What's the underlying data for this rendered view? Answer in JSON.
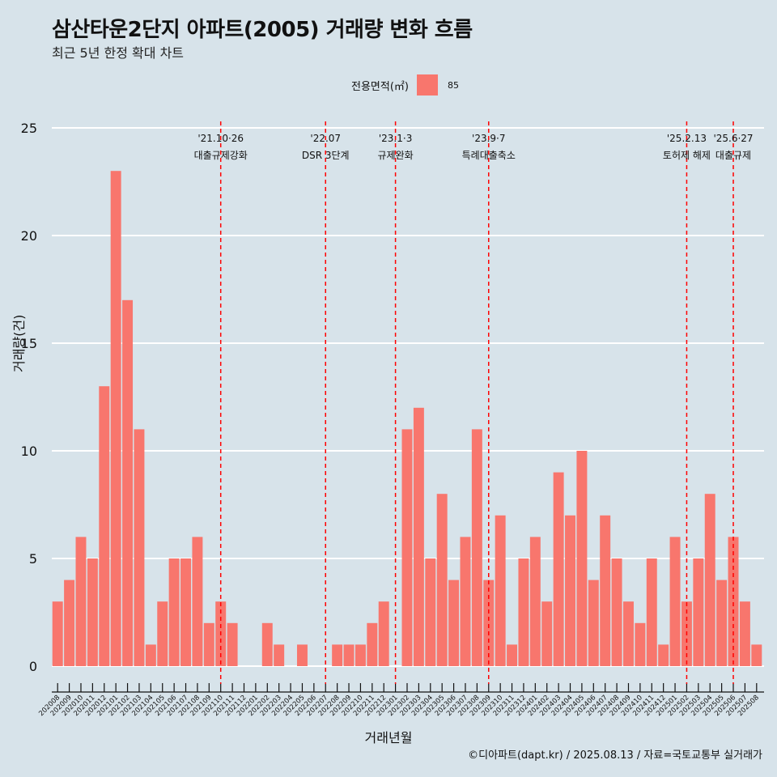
{
  "chart_data": {
    "type": "bar",
    "title": "삼산타운2단지 아파트(2005) 거래량 변화 흐름",
    "subtitle": "최근 5년 한정 확대 차트",
    "xlabel": "거래년월",
    "ylabel": "거래량(건)",
    "caption": "©디아파트(dapt.kr) / 2025.08.13 / 자료=국토교통부 실거래가",
    "legend": {
      "title": "전용면적(㎡)",
      "position": "top",
      "entries": [
        {
          "label": "85",
          "color": "#f8766d"
        }
      ]
    },
    "ylim": [
      0,
      25
    ],
    "yticks": [
      0,
      5,
      10,
      15,
      20,
      25
    ],
    "grid": true,
    "bar_color": "#f8766d",
    "categories": [
      "202008",
      "202009",
      "202010",
      "202011",
      "202012",
      "202101",
      "202102",
      "202103",
      "202104",
      "202105",
      "202106",
      "202107",
      "202108",
      "202109",
      "202110",
      "202111",
      "202112",
      "202201",
      "202202",
      "202203",
      "202204",
      "202205",
      "202206",
      "202207",
      "202208",
      "202209",
      "202210",
      "202211",
      "202212",
      "202301",
      "202302",
      "202303",
      "202304",
      "202305",
      "202306",
      "202307",
      "202308",
      "202309",
      "202310",
      "202311",
      "202312",
      "202401",
      "202402",
      "202403",
      "202404",
      "202405",
      "202406",
      "202407",
      "202408",
      "202409",
      "202410",
      "202411",
      "202412",
      "202501",
      "202502",
      "202503",
      "202504",
      "202505",
      "202506",
      "202507",
      "202508"
    ],
    "values": [
      3,
      4,
      6,
      5,
      13,
      23,
      17,
      11,
      1,
      3,
      5,
      5,
      6,
      2,
      3,
      2,
      0,
      0,
      2,
      1,
      0,
      1,
      0,
      0,
      1,
      1,
      1,
      2,
      3,
      0,
      11,
      12,
      5,
      8,
      4,
      6,
      11,
      4,
      7,
      1,
      5,
      6,
      3,
      9,
      7,
      10,
      4,
      7,
      5,
      3,
      2,
      5,
      1,
      6,
      3,
      5,
      8,
      4,
      6,
      3,
      1
    ],
    "annotations": [
      {
        "category": "202110",
        "date": "'21.10·26",
        "text": "대출규제강화",
        "color": "#ff0000"
      },
      {
        "category": "202207",
        "date": "'22.07",
        "text": "DSR 3단계",
        "color": "#ff0000"
      },
      {
        "category": "202301",
        "date": "'23.1·3",
        "text": "규제완화",
        "color": "#ff0000"
      },
      {
        "category": "202309",
        "date": "'23.9·7",
        "text": "특례대출축소",
        "color": "#ff0000"
      },
      {
        "category": "202502",
        "date": "'25.2.13",
        "text": "토허제 해제",
        "color": "#ff0000"
      },
      {
        "category": "202506",
        "date": "'25.6·27",
        "text": "대출규제",
        "color": "#ff0000"
      }
    ]
  }
}
